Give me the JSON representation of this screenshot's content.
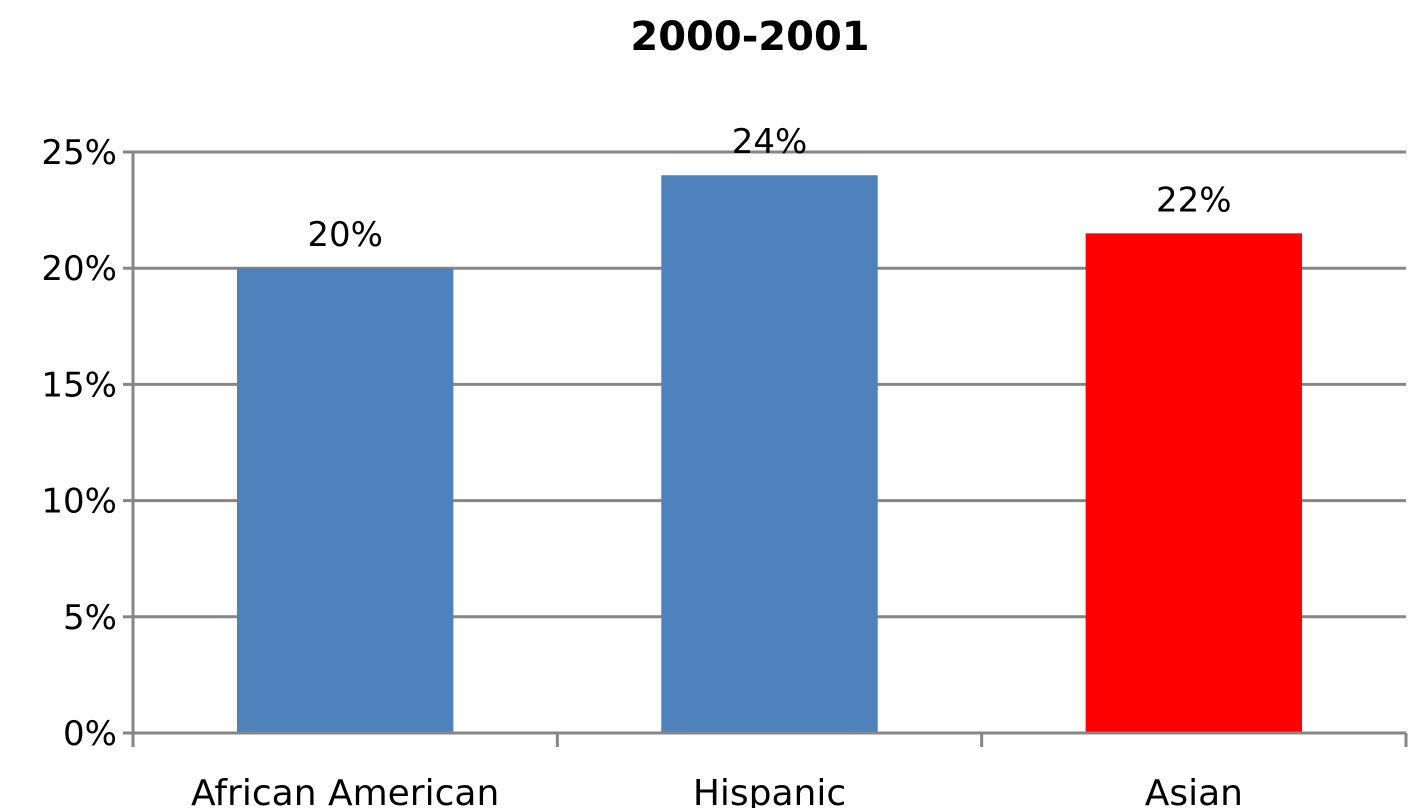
{
  "chart_data": {
    "type": "bar",
    "title": "2000-2001",
    "xlabel": "",
    "ylabel": "",
    "categories": [
      "African American",
      "Hispanic",
      "Asian"
    ],
    "values": [
      20,
      24,
      21.5
    ],
    "data_labels": [
      "20%",
      "24%",
      "22%"
    ],
    "bar_colors": [
      "#4f81bd",
      "#4f81bd",
      "#ff0000"
    ],
    "ylim": [
      0,
      25
    ],
    "yticks": [
      0,
      5,
      10,
      15,
      20,
      25
    ],
    "ytick_labels": [
      "0%",
      "5%",
      "10%",
      "15%",
      "20%",
      "25%"
    ],
    "grid": true,
    "legend": "none"
  }
}
